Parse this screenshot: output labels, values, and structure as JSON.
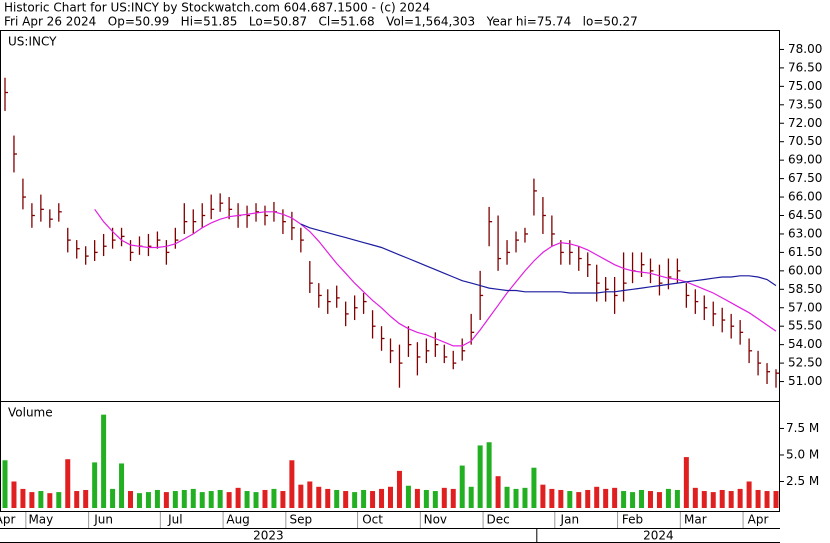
{
  "chart_data": {
    "type": "ohlc",
    "title": "Historic Chart for US:INCY by Stockwatch.com 604.687.1500 - (c) 2024",
    "subtitle": "Fri Apr 26 2024   Op=50.99   Hi=51.85   Lo=50.87   Cl=51.68   Vol=1,564,303   Year hi=75.74   lo=50.27",
    "categories": [
      "Apr",
      null,
      null,
      null,
      "May",
      null,
      null,
      null,
      null,
      null,
      null,
      "Jun",
      null,
      null,
      null,
      null,
      null,
      null,
      null,
      "Jul",
      null,
      null,
      null,
      null,
      null,
      null,
      "Aug",
      null,
      null,
      null,
      null,
      null,
      null,
      "Sep",
      null,
      null,
      null,
      null,
      null,
      null,
      null,
      "Oct",
      null,
      null,
      null,
      null,
      null,
      null,
      "Nov",
      null,
      null,
      null,
      null,
      null,
      null,
      "Dec",
      null,
      null,
      null,
      null,
      null,
      null,
      null,
      "Jan",
      null,
      null,
      null,
      null,
      null,
      null,
      "Feb",
      null,
      null,
      null,
      null,
      null,
      null,
      "Mar",
      null,
      null,
      null,
      null,
      null,
      null,
      "Apr",
      null,
      null
    ],
    "years": [
      "2023",
      "2024"
    ],
    "price": {
      "name": "US:INCY",
      "color": "#800000",
      "high": [
        75.7,
        71,
        67.5,
        65.5,
        66.2,
        65,
        65.5,
        63.5,
        62.5,
        62,
        62.5,
        63,
        63.5,
        63.5,
        62.5,
        62.8,
        63,
        63.2,
        62.5,
        63.5,
        65.5,
        65,
        65.5,
        66.2,
        66.3,
        66,
        65.5,
        65.3,
        65.5,
        65.3,
        65.6,
        65,
        64.8,
        63.5,
        60.8,
        59,
        58.5,
        58.8,
        57.5,
        58,
        58.2,
        56.8,
        55.5,
        54.5,
        54,
        55.5,
        54.2,
        54.5,
        55,
        54,
        53.5,
        54.5,
        56.5,
        60,
        65.2,
        64.5,
        62.5,
        63.2,
        63.5,
        67.5,
        66,
        64.5,
        62.5,
        62.5,
        62,
        61.5,
        60.5,
        59.5,
        59.5,
        61.5,
        61.5,
        61.5,
        61,
        60.5,
        61,
        61,
        59,
        58.5,
        58,
        57.5,
        57,
        56.5,
        56,
        54.5,
        53.5,
        52.5,
        52
      ],
      "low": [
        73,
        68,
        65,
        63.5,
        64,
        63.5,
        64,
        61.5,
        61,
        60.5,
        60.8,
        61.2,
        61.8,
        62,
        60.8,
        61.3,
        61.2,
        61.8,
        60.5,
        61.8,
        63,
        63,
        63.5,
        64.2,
        64.8,
        64.2,
        63.5,
        63.5,
        64,
        63.7,
        64,
        63,
        62.5,
        61.5,
        58.2,
        57,
        56.5,
        57,
        55.5,
        56,
        56.5,
        54.5,
        53.5,
        52.5,
        50.5,
        53,
        51.5,
        52.5,
        53,
        52.5,
        52,
        52.7,
        54,
        56,
        62,
        60,
        60.5,
        61.5,
        62.3,
        64.5,
        63,
        62,
        60.5,
        60.5,
        60,
        59.5,
        57.5,
        57.5,
        56.5,
        57.5,
        59,
        59.5,
        59,
        58,
        58.5,
        59,
        57,
        56.5,
        56,
        55.5,
        55,
        54.5,
        54,
        52.5,
        51.5,
        50.8,
        50.5
      ],
      "close": [
        74.5,
        69.5,
        66,
        64.5,
        65,
        64.2,
        64.8,
        62.5,
        61.8,
        61.2,
        61.5,
        62,
        62.5,
        62.8,
        61.5,
        62,
        62,
        62.5,
        61.5,
        62.5,
        64,
        64,
        64.5,
        65,
        65.5,
        65,
        64.5,
        64.5,
        64.8,
        64.5,
        64.8,
        64,
        63.5,
        62.5,
        59,
        58,
        57.5,
        57.8,
        56.5,
        57,
        57.5,
        55.5,
        54.5,
        53.5,
        52.5,
        54,
        53,
        53.5,
        54,
        53,
        52.5,
        53.5,
        55,
        58,
        64,
        61,
        61.5,
        62.5,
        63,
        66.5,
        64.5,
        63,
        61.5,
        61.5,
        61,
        60.5,
        59,
        58.5,
        58,
        59,
        60,
        60.5,
        60,
        59,
        59.5,
        60,
        58,
        57.5,
        57,
        56.5,
        56,
        55.5,
        55,
        53.5,
        52.5,
        51.8,
        51.68
      ]
    },
    "moving_averages": [
      {
        "color": "#e020e0",
        "values": [
          null,
          null,
          null,
          null,
          null,
          null,
          null,
          null,
          null,
          null,
          65,
          64,
          63.2,
          62.5,
          62.1,
          62,
          61.9,
          61.9,
          62,
          62.2,
          62.6,
          63,
          63.5,
          63.9,
          64.2,
          64.4,
          64.5,
          64.6,
          64.7,
          64.8,
          64.8,
          64.6,
          64.3,
          63.8,
          63.2,
          62.4,
          61.5,
          60.6,
          59.8,
          59,
          58.3,
          57.6,
          57,
          56.3,
          55.7,
          55.3,
          55,
          54.8,
          54.5,
          54.2,
          53.9,
          53.9,
          54.3,
          55.2,
          56.2,
          57.2,
          58.2,
          59.1,
          60,
          60.8,
          61.5,
          62,
          62.3,
          62.2,
          62,
          61.7,
          61.3,
          60.9,
          60.5,
          60.2,
          60,
          59.9,
          59.8,
          59.6,
          59.4,
          59.3,
          59.1,
          58.8,
          58.5,
          58.2,
          57.8,
          57.4,
          57,
          56.6,
          56.1,
          55.6,
          55.1
        ]
      },
      {
        "color": "#1c1ca0",
        "values": [
          null,
          null,
          null,
          null,
          null,
          null,
          null,
          null,
          null,
          null,
          null,
          null,
          null,
          null,
          null,
          null,
          null,
          null,
          null,
          null,
          null,
          null,
          null,
          null,
          null,
          null,
          null,
          null,
          null,
          null,
          null,
          null,
          null,
          63.8,
          63.5,
          63.3,
          63.1,
          62.9,
          62.7,
          62.5,
          62.3,
          62.1,
          61.9,
          61.6,
          61.3,
          61,
          60.7,
          60.4,
          60.1,
          59.8,
          59.5,
          59.2,
          59,
          58.8,
          58.6,
          58.5,
          58.4,
          58.4,
          58.3,
          58.3,
          58.3,
          58.3,
          58.3,
          58.2,
          58.2,
          58.2,
          58.2,
          58.3,
          58.3,
          58.4,
          58.5,
          58.6,
          58.7,
          58.8,
          58.9,
          59,
          59.1,
          59.2,
          59.3,
          59.4,
          59.5,
          59.5,
          59.6,
          59.6,
          59.5,
          59.3,
          58.8
        ]
      }
    ],
    "ylim": [
      49.5,
      79.5
    ],
    "yticks": [
      {
        "value": 51,
        "label": "51.00"
      },
      {
        "value": 52.5,
        "label": "52.50"
      },
      {
        "value": 54,
        "label": "54.00"
      },
      {
        "value": 55.5,
        "label": "55.50"
      },
      {
        "value": 57,
        "label": "57.00"
      },
      {
        "value": 58.5,
        "label": "58.50"
      },
      {
        "value": 60,
        "label": "60.00"
      },
      {
        "value": 61.5,
        "label": "61.50"
      },
      {
        "value": 63,
        "label": "63.00"
      },
      {
        "value": 64.5,
        "label": "64.50"
      },
      {
        "value": 66,
        "label": "66.00"
      },
      {
        "value": 67.5,
        "label": "67.50"
      },
      {
        "value": 69,
        "label": "69.00"
      },
      {
        "value": 70.5,
        "label": "70.50"
      },
      {
        "value": 72,
        "label": "72.00"
      },
      {
        "value": 73.5,
        "label": "73.50"
      },
      {
        "value": 75,
        "label": "75.00"
      },
      {
        "value": 76.5,
        "label": "76.50"
      },
      {
        "value": 78,
        "label": "78.00"
      }
    ],
    "volume": {
      "name": "Volume",
      "up_color": "#22b022",
      "down_color": "#e02020",
      "values": [
        4.5,
        2.5,
        1.8,
        1.5,
        1.6,
        1.4,
        1.5,
        4.6,
        1.6,
        1.7,
        4.3,
        8.8,
        1.8,
        4.2,
        1.6,
        1.4,
        1.5,
        1.7,
        1.5,
        1.6,
        1.7,
        1.8,
        1.5,
        1.6,
        1.7,
        1.5,
        1.9,
        1.6,
        1.5,
        1.7,
        1.8,
        1.6,
        4.5,
        2.2,
        2.5,
        2.0,
        1.8,
        1.7,
        1.6,
        1.5,
        1.7,
        1.6,
        1.8,
        2.0,
        3.5,
        2.1,
        1.8,
        1.7,
        1.6,
        1.9,
        1.8,
        4.0,
        2.0,
        5.9,
        6.2,
        3.0,
        2.0,
        1.8,
        1.9,
        3.8,
        2.2,
        1.8,
        1.7,
        1.6,
        1.5,
        1.7,
        2.0,
        1.8,
        1.9,
        1.6,
        1.5,
        1.7,
        1.6,
        1.5,
        1.8,
        1.7,
        4.8,
        1.9,
        1.6,
        1.5,
        1.7,
        1.6,
        1.8,
        2.5,
        1.7,
        1.6,
        1.6
      ],
      "ylim": [
        0,
        9.9
      ],
      "yticks": [
        {
          "value": 2.5,
          "label": "2.5 M"
        },
        {
          "value": 5,
          "label": "5.0 M"
        },
        {
          "value": 7.5,
          "label": "7.5 M"
        }
      ]
    }
  }
}
